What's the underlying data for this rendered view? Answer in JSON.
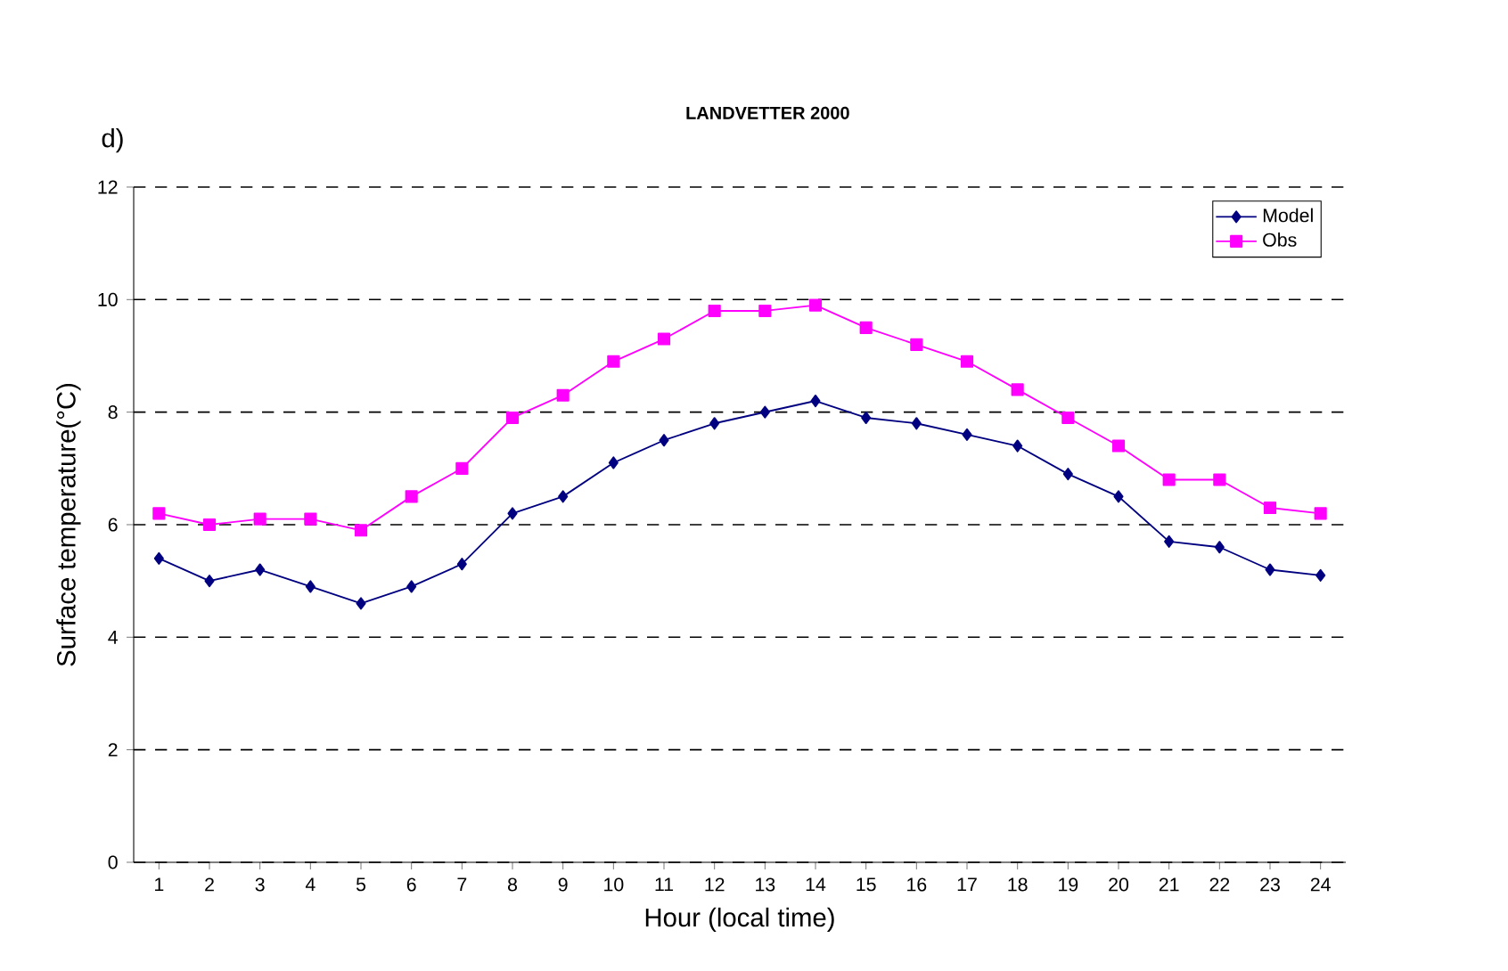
{
  "chart_data": {
    "type": "line",
    "title": "LANDVETTER 2000",
    "xlabel": "Hour (local time)",
    "ylabel": "Surface temperature(°C)",
    "annotations": [
      "d)"
    ],
    "categories": [
      "1",
      "2",
      "3",
      "4",
      "5",
      "6",
      "7",
      "8",
      "9",
      "10",
      "11",
      "12",
      "13",
      "14",
      "15",
      "16",
      "17",
      "18",
      "19",
      "20",
      "21",
      "22",
      "23",
      "24"
    ],
    "series": [
      {
        "name": "Model",
        "color": "#000080",
        "marker": "diamond",
        "values": [
          5.4,
          5.0,
          5.2,
          4.9,
          4.6,
          4.9,
          5.3,
          6.2,
          6.5,
          7.1,
          7.5,
          7.8,
          8.0,
          8.2,
          7.9,
          7.8,
          7.6,
          7.4,
          6.9,
          6.5,
          5.7,
          5.6,
          5.2,
          5.1
        ]
      },
      {
        "name": "Obs",
        "color": "#ff00ff",
        "marker": "square",
        "values": [
          6.2,
          6.0,
          6.1,
          6.1,
          5.9,
          6.5,
          7.0,
          7.9,
          8.3,
          8.9,
          9.3,
          9.8,
          9.8,
          9.9,
          9.5,
          9.2,
          8.9,
          8.4,
          7.9,
          7.4,
          6.8,
          6.8,
          6.3,
          6.2
        ]
      }
    ],
    "ylim": [
      0,
      12
    ],
    "yticks": [
      0,
      2,
      4,
      6,
      8,
      10,
      12
    ],
    "grid": "y",
    "legend": "top right",
    "line_style": "solid"
  }
}
